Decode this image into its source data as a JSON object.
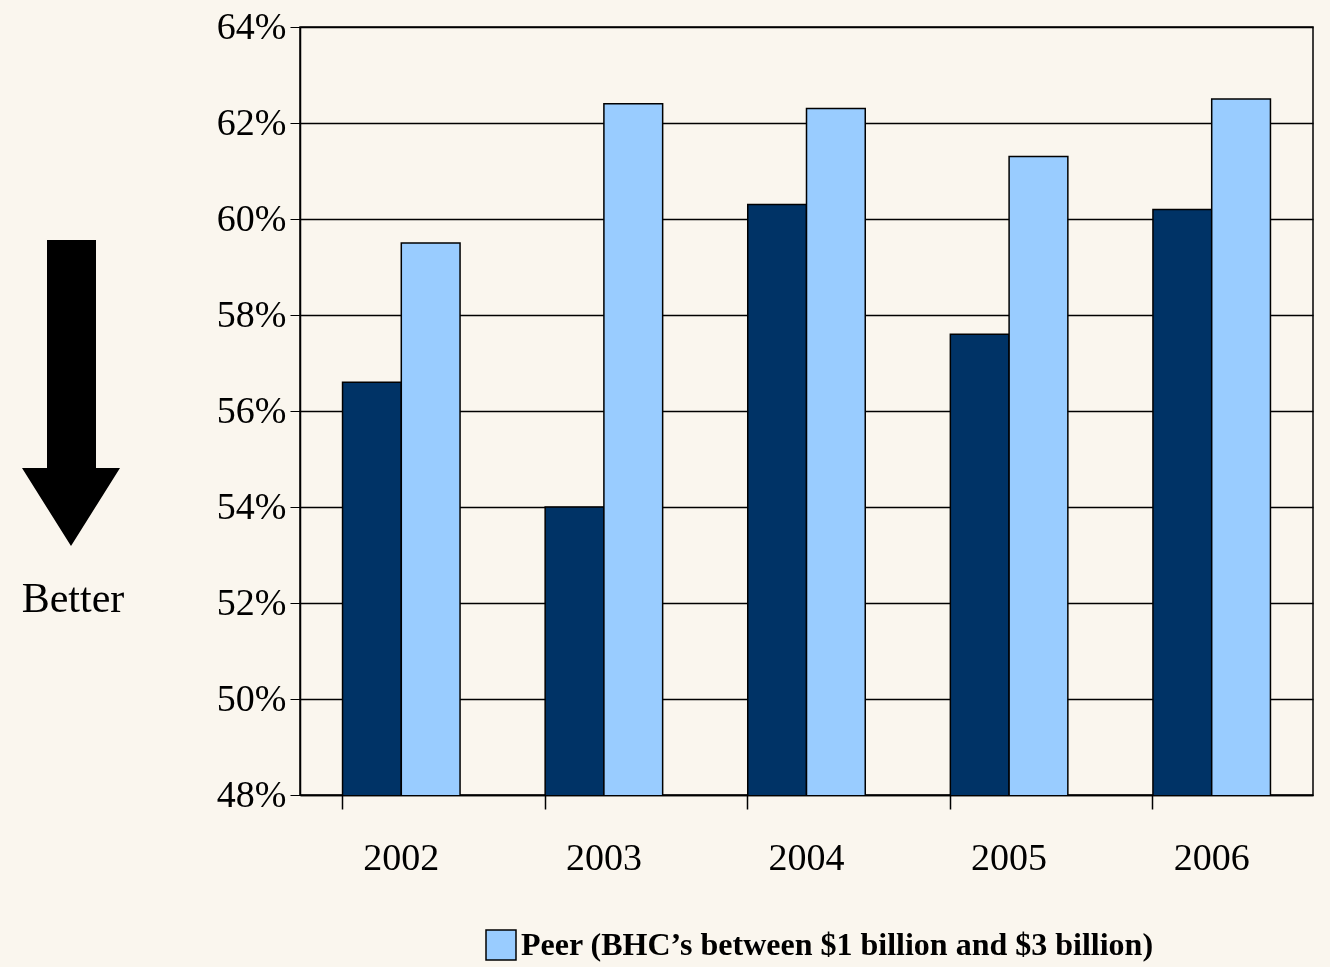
{
  "chart_data": {
    "type": "bar",
    "categories": [
      "2002",
      "2003",
      "2004",
      "2005",
      "2006"
    ],
    "series": [
      {
        "color": "#003366",
        "values": [
          56.6,
          54.0,
          60.3,
          57.6,
          60.2
        ]
      },
      {
        "name": "Peer (BHC’s between $1 billion and $3 billion)",
        "color": "#99ccff",
        "values": [
          59.5,
          62.4,
          62.3,
          61.3,
          62.5
        ]
      }
    ],
    "ylim": [
      48,
      64
    ],
    "yticks": [
      {
        "value": 48,
        "label": "48%"
      },
      {
        "value": 50,
        "label": "50%"
      },
      {
        "value": 52,
        "label": "52%"
      },
      {
        "value": 54,
        "label": "54%"
      },
      {
        "value": 56,
        "label": "56%"
      },
      {
        "value": 58,
        "label": "58%"
      },
      {
        "value": 60,
        "label": "60%"
      },
      {
        "value": 62,
        "label": "62%"
      },
      {
        "value": 64,
        "label": "64%"
      }
    ],
    "grid": "y",
    "legend": "bottom",
    "annotations": [
      "Better"
    ]
  }
}
